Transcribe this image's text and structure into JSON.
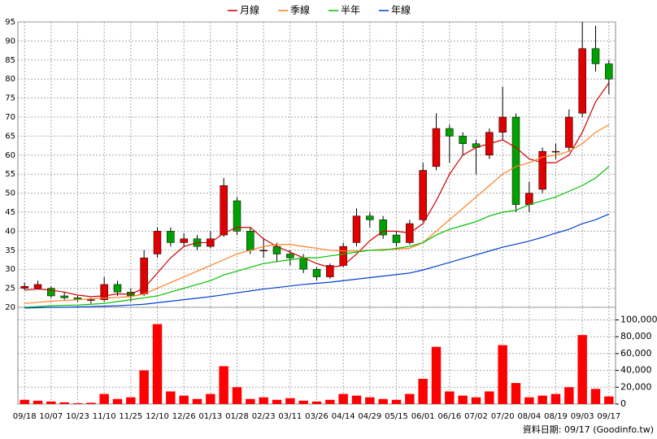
{
  "chart_data": {
    "type": "candlestick",
    "categories": [
      "09/18",
      null,
      "10/07",
      null,
      "10/23",
      null,
      "11/10",
      null,
      "11/25",
      null,
      "12/10",
      null,
      "12/26",
      null,
      "01/13",
      null,
      "01/28",
      null,
      "02/23",
      null,
      "03/11",
      null,
      "03/26",
      null,
      "04/14",
      null,
      "04/29",
      null,
      "05/15",
      null,
      "06/01",
      null,
      "06/16",
      null,
      "07/02",
      null,
      "07/20",
      null,
      "08/04",
      null,
      "08/19",
      null,
      "09/03",
      null,
      "09/17"
    ],
    "open": [
      25,
      25,
      25,
      23,
      22.5,
      22,
      22,
      26,
      24,
      23.5,
      34,
      40,
      37,
      38,
      36,
      39,
      48,
      40,
      35,
      36,
      34,
      33,
      30,
      28,
      31,
      37,
      44,
      43,
      39,
      37,
      43,
      57,
      67,
      65,
      63,
      60,
      66,
      70,
      47,
      51,
      61,
      62,
      71,
      88,
      84
    ],
    "high": [
      26.5,
      27,
      25.5,
      24,
      23,
      22.5,
      28,
      27,
      25,
      35,
      41,
      41,
      39.5,
      39,
      40,
      54,
      49,
      41,
      38,
      37,
      35,
      34,
      30.5,
      31.5,
      37,
      46,
      45,
      44,
      40,
      43,
      58,
      71,
      68,
      66,
      64,
      67,
      78,
      71,
      53,
      62,
      63,
      72,
      95,
      94,
      85
    ],
    "low": [
      24.5,
      24.8,
      22.5,
      22,
      21.5,
      21,
      21.5,
      23,
      21.5,
      23,
      33,
      36,
      36,
      35,
      35.5,
      38.5,
      39,
      34,
      33,
      32,
      31,
      29,
      27,
      27.5,
      30.5,
      36,
      41,
      38,
      36,
      36.5,
      42.5,
      56,
      58,
      60,
      55,
      59,
      64,
      45,
      45,
      50,
      59,
      61,
      70,
      82,
      76
    ],
    "close": [
      25.5,
      26,
      23,
      22.5,
      22,
      22,
      26,
      24,
      23,
      33,
      40,
      37,
      38,
      36,
      38,
      52,
      40,
      35,
      35,
      34,
      33,
      30,
      28,
      31,
      36,
      44,
      43,
      39,
      37,
      42,
      56,
      67,
      65,
      63,
      62,
      66,
      70,
      47,
      50,
      61,
      61,
      70,
      88,
      84,
      80
    ],
    "volume": [
      5000,
      4000,
      3000,
      2000,
      1000,
      1500,
      12000,
      6000,
      8000,
      40000,
      95000,
      15000,
      10000,
      6000,
      12000,
      45000,
      20000,
      6000,
      8000,
      5000,
      7000,
      4000,
      3000,
      5000,
      12000,
      10000,
      8000,
      6000,
      5000,
      12000,
      30000,
      68000,
      15000,
      10000,
      8000,
      15000,
      70000,
      25000,
      8000,
      10000,
      12000,
      20000,
      82000,
      18000,
      9000
    ],
    "up_color": "#e00000",
    "down_color": "#00a000",
    "volume_color": "#ff0000",
    "series": [
      {
        "name": "月線",
        "color": "#d00000",
        "values": [
          24.5,
          24.8,
          24.5,
          24,
          23.2,
          22.8,
          23,
          23.5,
          23.5,
          25,
          29,
          33,
          36,
          37,
          37,
          39.5,
          41,
          41,
          38,
          36,
          34.5,
          33,
          31.5,
          30.5,
          31,
          34,
          37.5,
          40,
          40,
          39.5,
          42,
          48,
          55,
          60,
          62,
          63,
          64,
          62,
          59,
          58,
          58,
          60,
          66,
          74,
          79
        ]
      },
      {
        "name": "季線",
        "color": "#ff8020",
        "values": [
          21,
          21.3,
          21.6,
          21.8,
          22,
          22.2,
          22.4,
          22.6,
          22.8,
          23.5,
          25,
          26.5,
          28,
          29.5,
          31,
          32.5,
          34,
          35,
          36,
          36.5,
          36.5,
          36,
          35.5,
          35,
          34.8,
          34.8,
          35,
          35.2,
          35.3,
          35.5,
          37,
          40,
          43,
          46,
          49,
          52,
          55,
          57,
          58,
          59.5,
          60,
          61,
          63,
          66,
          68
        ]
      },
      {
        "name": "半年",
        "color": "#00c000",
        "values": [
          20,
          20.2,
          20.4,
          20.5,
          20.6,
          20.8,
          21,
          21.5,
          22,
          22.5,
          23,
          24,
          25,
          26,
          27,
          28.5,
          29.5,
          30.5,
          31.5,
          32,
          32.5,
          33,
          33,
          33.5,
          34,
          34.5,
          35,
          35,
          35.5,
          36,
          37,
          39,
          40.5,
          41.5,
          42.5,
          44,
          45,
          45.5,
          47,
          48,
          49,
          50.5,
          52,
          54,
          57
        ]
      },
      {
        "name": "年線",
        "color": "#0040d0",
        "values": [
          19.8,
          19.9,
          20,
          20,
          20.1,
          20.2,
          20.3,
          20.4,
          20.6,
          20.8,
          21.2,
          21.6,
          22,
          22.4,
          22.8,
          23.3,
          23.8,
          24.3,
          24.8,
          25.2,
          25.6,
          26,
          26.3,
          26.6,
          27,
          27.4,
          27.8,
          28.2,
          28.6,
          29,
          29.8,
          30.8,
          31.8,
          32.8,
          33.8,
          34.8,
          35.8,
          36.6,
          37.4,
          38.4,
          39.5,
          40.5,
          42,
          43,
          44.5
        ]
      }
    ],
    "ylim": [
      20,
      95
    ],
    "yticks": [
      20,
      25,
      30,
      35,
      40,
      45,
      50,
      55,
      60,
      65,
      70,
      75,
      80,
      85,
      90,
      95
    ],
    "volume_ylim": [
      0,
      115000
    ],
    "volume_yticks": [
      0,
      {
        "value": 20000,
        "label": "20,000"
      },
      {
        "value": 40000,
        "label": "40,000"
      },
      {
        "value": 60000,
        "label": "60,000"
      },
      {
        "value": 80000,
        "label": "80,000"
      },
      {
        "value": 100000,
        "label": "100,000"
      }
    ],
    "grid": true,
    "note": "資料日期: 09/17 (Goodinfo.tw)"
  }
}
